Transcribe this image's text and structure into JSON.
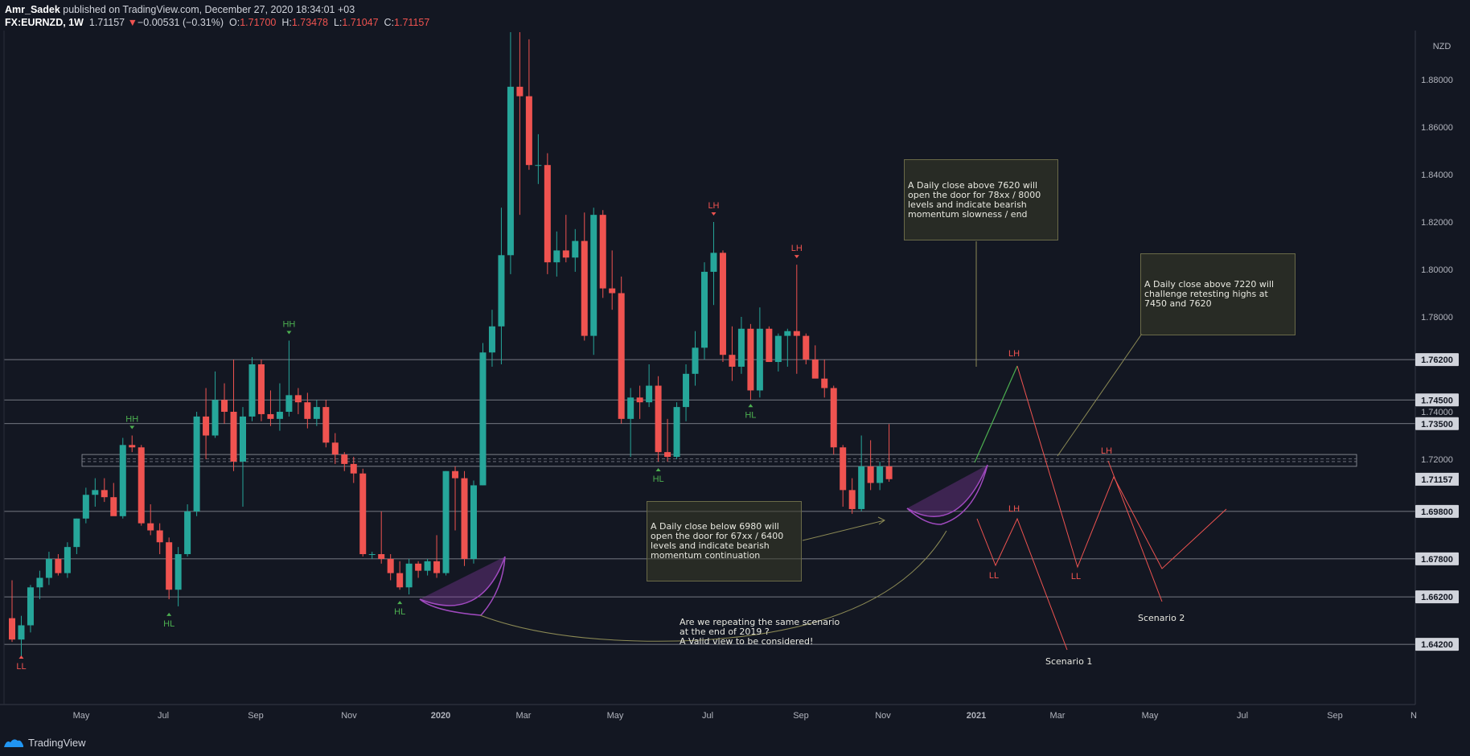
{
  "header": {
    "author": "Amr_Sadek",
    "published": "published on TradingView.com, December 27, 2020 18:34:01 +03",
    "symbol": "FX:EURNZD, 1W",
    "last": "1.71157",
    "arrow": "▼",
    "change": "−0.00531 (−0.31%)",
    "o_label": "O:",
    "o": "1.71700",
    "h_label": "H:",
    "h": "1.73478",
    "l_label": "L:",
    "l": "1.71047",
    "c_label": "C:",
    "c": "1.71157"
  },
  "footer": {
    "brand": "TradingView"
  },
  "colors": {
    "up": "#26a69a",
    "down": "#ef5350",
    "background": "#131722",
    "level_line": "#787b86",
    "hl": "#4caf50",
    "lh": "#ef5350"
  },
  "annotations": {
    "note1": "A Daily close above 7620 will open the door for 78xx / 8000 levels and indicate bearish momentum slowness / end",
    "note2": "A Daily close above 7220 will challenge retesting highs at 7450 and 7620",
    "note3": "A Daily close below 6980 will open the door for 67xx / 6400 levels and indicate bearish momentum continuation",
    "note4": [
      "Are we repeating the same scenario",
      "at the end of 2019 ?",
      "A Valid view to be considered!"
    ],
    "scenario1": "Scenario 1",
    "scenario2": "Scenario 2"
  },
  "chart_data": {
    "type": "candlestick",
    "symbol": "FX:EURNZD",
    "interval": "1W",
    "currency": "NZD",
    "ylim": [
      1.62,
      1.9
    ],
    "y_ticks": [
      "1.88000",
      "1.86000",
      "1.84000",
      "1.82000",
      "1.80000",
      "1.78000",
      "1.74000",
      "1.72000"
    ],
    "x_ticks": [
      "May",
      "Jul",
      "Sep",
      "Nov",
      "2020",
      "Mar",
      "May",
      "Jul",
      "Sep",
      "Nov",
      "2021",
      "Mar",
      "May",
      "Jul",
      "Sep",
      "N"
    ],
    "grid": false,
    "horizontal_levels": [
      "1.76200",
      "1.74500",
      "1.73500",
      "1.69800",
      "1.67800",
      "1.66200",
      "1.64200"
    ],
    "current_price": "1.71157",
    "candles": [
      {
        "o": 1.653,
        "h": 1.669,
        "l": 1.643,
        "c": 1.644
      },
      {
        "o": 1.644,
        "h": 1.654,
        "l": 1.637,
        "c": 1.65
      },
      {
        "o": 1.65,
        "h": 1.667,
        "l": 1.647,
        "c": 1.666
      },
      {
        "o": 1.666,
        "h": 1.673,
        "l": 1.661,
        "c": 1.67
      },
      {
        "o": 1.67,
        "h": 1.681,
        "l": 1.667,
        "c": 1.678
      },
      {
        "o": 1.678,
        "h": 1.68,
        "l": 1.671,
        "c": 1.672
      },
      {
        "o": 1.672,
        "h": 1.685,
        "l": 1.67,
        "c": 1.683
      },
      {
        "o": 1.683,
        "h": 1.695,
        "l": 1.68,
        "c": 1.695
      },
      {
        "o": 1.695,
        "h": 1.708,
        "l": 1.693,
        "c": 1.705
      },
      {
        "o": 1.705,
        "h": 1.712,
        "l": 1.7,
        "c": 1.707
      },
      {
        "o": 1.707,
        "h": 1.712,
        "l": 1.702,
        "c": 1.704
      },
      {
        "o": 1.704,
        "h": 1.71,
        "l": 1.698,
        "c": 1.696
      },
      {
        "o": 1.696,
        "h": 1.729,
        "l": 1.695,
        "c": 1.726
      },
      {
        "o": 1.726,
        "h": 1.73,
        "l": 1.723,
        "c": 1.725
      },
      {
        "o": 1.725,
        "h": 1.726,
        "l": 1.692,
        "c": 1.693
      },
      {
        "o": 1.693,
        "h": 1.701,
        "l": 1.688,
        "c": 1.69
      },
      {
        "o": 1.69,
        "h": 1.693,
        "l": 1.68,
        "c": 1.685
      },
      {
        "o": 1.685,
        "h": 1.687,
        "l": 1.661,
        "c": 1.665
      },
      {
        "o": 1.665,
        "h": 1.683,
        "l": 1.658,
        "c": 1.68
      },
      {
        "o": 1.68,
        "h": 1.701,
        "l": 1.679,
        "c": 1.698
      },
      {
        "o": 1.698,
        "h": 1.74,
        "l": 1.696,
        "c": 1.738
      },
      {
        "o": 1.738,
        "h": 1.75,
        "l": 1.72,
        "c": 1.73
      },
      {
        "o": 1.73,
        "h": 1.757,
        "l": 1.729,
        "c": 1.745
      },
      {
        "o": 1.745,
        "h": 1.752,
        "l": 1.735,
        "c": 1.74
      },
      {
        "o": 1.74,
        "h": 1.762,
        "l": 1.715,
        "c": 1.719
      },
      {
        "o": 1.719,
        "h": 1.742,
        "l": 1.7,
        "c": 1.738
      },
      {
        "o": 1.738,
        "h": 1.763,
        "l": 1.736,
        "c": 1.76
      },
      {
        "o": 1.76,
        "h": 1.762,
        "l": 1.736,
        "c": 1.739
      },
      {
        "o": 1.739,
        "h": 1.749,
        "l": 1.734,
        "c": 1.737
      },
      {
        "o": 1.737,
        "h": 1.752,
        "l": 1.732,
        "c": 1.74
      },
      {
        "o": 1.74,
        "h": 1.77,
        "l": 1.738,
        "c": 1.747
      },
      {
        "o": 1.747,
        "h": 1.75,
        "l": 1.739,
        "c": 1.744
      },
      {
        "o": 1.744,
        "h": 1.748,
        "l": 1.733,
        "c": 1.737
      },
      {
        "o": 1.737,
        "h": 1.745,
        "l": 1.734,
        "c": 1.742
      },
      {
        "o": 1.742,
        "h": 1.745,
        "l": 1.725,
        "c": 1.727
      },
      {
        "o": 1.727,
        "h": 1.731,
        "l": 1.718,
        "c": 1.722
      },
      {
        "o": 1.722,
        "h": 1.723,
        "l": 1.715,
        "c": 1.718
      },
      {
        "o": 1.718,
        "h": 1.721,
        "l": 1.71,
        "c": 1.714
      },
      {
        "o": 1.714,
        "h": 1.716,
        "l": 1.679,
        "c": 1.68
      },
      {
        "o": 1.68,
        "h": 1.681,
        "l": 1.678,
        "c": 1.68
      },
      {
        "o": 1.68,
        "h": 1.698,
        "l": 1.676,
        "c": 1.678
      },
      {
        "o": 1.678,
        "h": 1.68,
        "l": 1.669,
        "c": 1.672
      },
      {
        "o": 1.672,
        "h": 1.677,
        "l": 1.665,
        "c": 1.666
      },
      {
        "o": 1.666,
        "h": 1.678,
        "l": 1.663,
        "c": 1.676
      },
      {
        "o": 1.676,
        "h": 1.677,
        "l": 1.67,
        "c": 1.673
      },
      {
        "o": 1.673,
        "h": 1.678,
        "l": 1.671,
        "c": 1.677
      },
      {
        "o": 1.677,
        "h": 1.688,
        "l": 1.67,
        "c": 1.672
      },
      {
        "o": 1.672,
        "h": 1.715,
        "l": 1.671,
        "c": 1.715
      },
      {
        "o": 1.715,
        "h": 1.717,
        "l": 1.69,
        "c": 1.712
      },
      {
        "o": 1.712,
        "h": 1.715,
        "l": 1.675,
        "c": 1.678
      },
      {
        "o": 1.678,
        "h": 1.711,
        "l": 1.676,
        "c": 1.709
      },
      {
        "o": 1.709,
        "h": 1.769,
        "l": 1.709,
        "c": 1.765
      },
      {
        "o": 1.765,
        "h": 1.783,
        "l": 1.759,
        "c": 1.776
      },
      {
        "o": 1.776,
        "h": 1.826,
        "l": 1.76,
        "c": 1.806
      },
      {
        "o": 1.806,
        "h": 1.9,
        "l": 1.798,
        "c": 1.877
      },
      {
        "o": 1.877,
        "h": 1.9,
        "l": 1.823,
        "c": 1.873
      },
      {
        "o": 1.873,
        "h": 1.897,
        "l": 1.842,
        "c": 1.844
      },
      {
        "o": 1.844,
        "h": 1.857,
        "l": 1.836,
        "c": 1.844
      },
      {
        "o": 1.844,
        "h": 1.849,
        "l": 1.798,
        "c": 1.803
      },
      {
        "o": 1.803,
        "h": 1.816,
        "l": 1.797,
        "c": 1.808
      },
      {
        "o": 1.808,
        "h": 1.823,
        "l": 1.803,
        "c": 1.805
      },
      {
        "o": 1.805,
        "h": 1.817,
        "l": 1.799,
        "c": 1.812
      },
      {
        "o": 1.812,
        "h": 1.824,
        "l": 1.77,
        "c": 1.772
      },
      {
        "o": 1.772,
        "h": 1.826,
        "l": 1.764,
        "c": 1.823
      },
      {
        "o": 1.823,
        "h": 1.825,
        "l": 1.788,
        "c": 1.792
      },
      {
        "o": 1.792,
        "h": 1.808,
        "l": 1.783,
        "c": 1.79
      },
      {
        "o": 1.79,
        "h": 1.797,
        "l": 1.735,
        "c": 1.737
      },
      {
        "o": 1.737,
        "h": 1.75,
        "l": 1.721,
        "c": 1.746
      },
      {
        "o": 1.746,
        "h": 1.751,
        "l": 1.737,
        "c": 1.744
      },
      {
        "o": 1.744,
        "h": 1.76,
        "l": 1.742,
        "c": 1.751
      },
      {
        "o": 1.751,
        "h": 1.755,
        "l": 1.719,
        "c": 1.723
      },
      {
        "o": 1.723,
        "h": 1.737,
        "l": 1.719,
        "c": 1.721
      },
      {
        "o": 1.721,
        "h": 1.744,
        "l": 1.72,
        "c": 1.742
      },
      {
        "o": 1.742,
        "h": 1.76,
        "l": 1.736,
        "c": 1.756
      },
      {
        "o": 1.756,
        "h": 1.774,
        "l": 1.751,
        "c": 1.767
      },
      {
        "o": 1.767,
        "h": 1.803,
        "l": 1.762,
        "c": 1.799
      },
      {
        "o": 1.799,
        "h": 1.82,
        "l": 1.785,
        "c": 1.807
      },
      {
        "o": 1.807,
        "h": 1.808,
        "l": 1.761,
        "c": 1.764
      },
      {
        "o": 1.764,
        "h": 1.776,
        "l": 1.753,
        "c": 1.759
      },
      {
        "o": 1.759,
        "h": 1.78,
        "l": 1.756,
        "c": 1.775
      },
      {
        "o": 1.775,
        "h": 1.777,
        "l": 1.745,
        "c": 1.749
      },
      {
        "o": 1.749,
        "h": 1.784,
        "l": 1.746,
        "c": 1.775
      },
      {
        "o": 1.775,
        "h": 1.776,
        "l": 1.762,
        "c": 1.761
      },
      {
        "o": 1.761,
        "h": 1.773,
        "l": 1.757,
        "c": 1.772
      },
      {
        "o": 1.772,
        "h": 1.775,
        "l": 1.759,
        "c": 1.774
      },
      {
        "o": 1.774,
        "h": 1.802,
        "l": 1.756,
        "c": 1.772
      },
      {
        "o": 1.772,
        "h": 1.773,
        "l": 1.76,
        "c": 1.762
      },
      {
        "o": 1.762,
        "h": 1.768,
        "l": 1.755,
        "c": 1.754
      },
      {
        "o": 1.754,
        "h": 1.762,
        "l": 1.746,
        "c": 1.75
      },
      {
        "o": 1.75,
        "h": 1.751,
        "l": 1.722,
        "c": 1.725
      },
      {
        "o": 1.725,
        "h": 1.726,
        "l": 1.7,
        "c": 1.707
      },
      {
        "o": 1.707,
        "h": 1.712,
        "l": 1.697,
        "c": 1.699
      },
      {
        "o": 1.699,
        "h": 1.73,
        "l": 1.698,
        "c": 1.717
      },
      {
        "o": 1.717,
        "h": 1.728,
        "l": 1.707,
        "c": 1.71
      },
      {
        "o": 1.71,
        "h": 1.719,
        "l": 1.707,
        "c": 1.717
      },
      {
        "o": 1.717,
        "h": 1.7348,
        "l": 1.7105,
        "c": 1.7116
      }
    ],
    "swing_labels": [
      {
        "text": "LL",
        "i": 1,
        "price": 1.64,
        "type": "low"
      },
      {
        "text": "HH",
        "i": 13,
        "price": 1.73,
        "type": "high"
      },
      {
        "text": "HL",
        "i": 17,
        "price": 1.658,
        "type": "low"
      },
      {
        "text": "HH",
        "i": 30,
        "price": 1.77,
        "type": "high"
      },
      {
        "text": "HL",
        "i": 42,
        "price": 1.663,
        "type": "low"
      },
      {
        "text": "HL",
        "i": 70,
        "price": 1.719,
        "type": "low"
      },
      {
        "text": "LH",
        "i": 76,
        "price": 1.82,
        "type": "high"
      },
      {
        "text": "HL",
        "i": 80,
        "price": 1.746,
        "type": "low"
      },
      {
        "text": "LH",
        "i": 85,
        "price": 1.802,
        "type": "high"
      }
    ],
    "projection_labels": [
      "LH",
      "LH",
      "LH",
      "LL",
      "LL",
      "LH"
    ]
  }
}
